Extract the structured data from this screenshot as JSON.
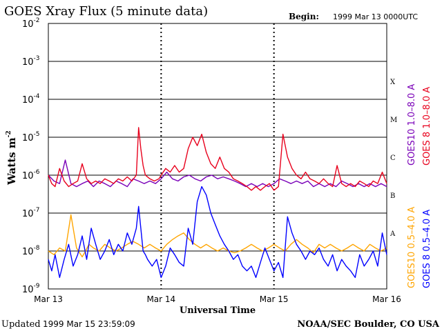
{
  "chart_data": {
    "type": "line",
    "title": "GOES Xray Flux (5 minute data)",
    "begin_label": "Begin:",
    "begin_value": "1999 Mar 13 0000UTC",
    "xlabel": "Universal Time",
    "ylabel": "Watts m",
    "ylabel_exponent": "-2",
    "yscale": "log",
    "ylim": [
      1e-09,
      0.01
    ],
    "xlim": [
      0,
      3
    ],
    "x_ticks": [
      {
        "value": 0,
        "label": "Mar 13"
      },
      {
        "value": 1,
        "label": "Mar 14"
      },
      {
        "value": 2,
        "label": "Mar 15"
      },
      {
        "value": 3,
        "label": "Mar 16"
      }
    ],
    "y_ticks": [
      {
        "exp": -2,
        "base": "10",
        "label": "-2"
      },
      {
        "exp": -3,
        "base": "10",
        "label": "-3"
      },
      {
        "exp": -4,
        "base": "10",
        "label": "-4"
      },
      {
        "exp": -5,
        "base": "10",
        "label": "-5"
      },
      {
        "exp": -6,
        "base": "10",
        "label": "-6"
      },
      {
        "exp": -7,
        "base": "10",
        "label": "-7"
      },
      {
        "exp": -8,
        "base": "10",
        "label": "-8"
      },
      {
        "exp": -9,
        "base": "10",
        "label": "-9"
      }
    ],
    "flare_classes": [
      {
        "label": "X",
        "value": 0.0003
      },
      {
        "label": "M",
        "value": 3e-05
      },
      {
        "label": "C",
        "value": 3e-06
      },
      {
        "label": "B",
        "value": 3e-07
      },
      {
        "label": "A",
        "value": 3e-08
      }
    ],
    "grid": true,
    "legend": [
      {
        "text": "GOES10 1.0–8.0 A",
        "color": "#7a00b8"
      },
      {
        "text": "GOES 8 1.0–8.0 A",
        "color": "#e8001c"
      },
      {
        "text": "GOES10 0.5–4.0 A",
        "color": "#ffa500"
      },
      {
        "text": "GOES 8 0.5–4.0 A",
        "color": "#0000ff"
      }
    ],
    "series": [
      {
        "name": "GOES10 0.5–4.0 A",
        "color": "#ffa500",
        "x": [
          0,
          0.05,
          0.1,
          0.15,
          0.2,
          0.25,
          0.3,
          0.33,
          0.36,
          0.4,
          0.45,
          0.5,
          0.55,
          0.6,
          0.65,
          0.7,
          0.75,
          0.8,
          0.85,
          0.9,
          0.95,
          1.0,
          1.05,
          1.1,
          1.15,
          1.2,
          1.25,
          1.3,
          1.35,
          1.4,
          1.45,
          1.5,
          1.55,
          1.6,
          1.65,
          1.7,
          1.75,
          1.8,
          1.85,
          1.9,
          1.95,
          2.0,
          2.05,
          2.1,
          2.15,
          2.2,
          2.25,
          2.3,
          2.35,
          2.4,
          2.45,
          2.5,
          2.55,
          2.6,
          2.65,
          2.7,
          2.75,
          2.8,
          2.85,
          2.9,
          2.95,
          3.0
        ],
        "y": [
          1e-08,
          8e-09,
          1.2e-08,
          1e-08,
          9e-08,
          1.2e-08,
          7e-09,
          1e-08,
          1.5e-08,
          1.2e-08,
          1e-08,
          1.5e-08,
          1.2e-08,
          1e-08,
          1.2e-08,
          1.5e-08,
          1.8e-08,
          1.5e-08,
          1.2e-08,
          1.5e-08,
          1.2e-08,
          1e-08,
          1.5e-08,
          2e-08,
          2.5e-08,
          3e-08,
          2e-08,
          1.5e-08,
          1.2e-08,
          1.5e-08,
          1.2e-08,
          1e-08,
          1.2e-08,
          1e-08,
          9e-09,
          1e-08,
          1.2e-08,
          1.5e-08,
          1.2e-08,
          1e-08,
          1.2e-08,
          1.5e-08,
          1.2e-08,
          1e-08,
          1.5e-08,
          2e-08,
          1.5e-08,
          1.2e-08,
          9e-09,
          1.5e-08,
          1.2e-08,
          1.5e-08,
          1.2e-08,
          1e-08,
          1.2e-08,
          1.5e-08,
          1.2e-08,
          1e-08,
          1.5e-08,
          1.2e-08,
          1e-08,
          1.2e-08
        ]
      },
      {
        "name": "GOES 8 0.5–4.0 A",
        "color": "#0000ff",
        "x": [
          0,
          0.03,
          0.06,
          0.1,
          0.14,
          0.18,
          0.22,
          0.26,
          0.3,
          0.34,
          0.38,
          0.42,
          0.46,
          0.5,
          0.54,
          0.58,
          0.62,
          0.66,
          0.7,
          0.74,
          0.78,
          0.8,
          0.82,
          0.84,
          0.86,
          0.88,
          0.92,
          0.96,
          1.0,
          1.04,
          1.08,
          1.12,
          1.16,
          1.2,
          1.24,
          1.28,
          1.32,
          1.36,
          1.4,
          1.44,
          1.48,
          1.52,
          1.56,
          1.6,
          1.64,
          1.68,
          1.72,
          1.76,
          1.8,
          1.84,
          1.88,
          1.92,
          1.96,
          2.0,
          2.04,
          2.08,
          2.12,
          2.16,
          2.2,
          2.24,
          2.28,
          2.32,
          2.36,
          2.4,
          2.44,
          2.48,
          2.52,
          2.56,
          2.6,
          2.64,
          2.68,
          2.72,
          2.76,
          2.8,
          2.84,
          2.88,
          2.92,
          2.96,
          3.0
        ],
        "y": [
          6e-09,
          3e-09,
          8e-09,
          2e-09,
          6e-09,
          1.5e-08,
          4e-09,
          8e-09,
          2.5e-08,
          6e-09,
          4e-08,
          1.5e-08,
          6e-09,
          1e-08,
          2e-08,
          8e-09,
          1.5e-08,
          1e-08,
          3e-08,
          1.5e-08,
          4e-08,
          1.5e-07,
          4e-08,
          1e-08,
          8e-09,
          6e-09,
          4e-09,
          6e-09,
          2e-09,
          4e-09,
          1.2e-08,
          8e-09,
          5e-09,
          4e-09,
          4e-08,
          1.5e-08,
          2e-07,
          5e-07,
          3e-07,
          1e-07,
          5e-08,
          2.5e-08,
          1.5e-08,
          1e-08,
          6e-09,
          8e-09,
          4e-09,
          3e-09,
          4e-09,
          2e-09,
          5e-09,
          1.2e-08,
          6e-09,
          3e-09,
          5e-09,
          2e-09,
          8e-08,
          3e-08,
          1.5e-08,
          1e-08,
          6e-09,
          1e-08,
          8e-09,
          1.2e-08,
          6e-09,
          4e-09,
          8e-09,
          3e-09,
          6e-09,
          4e-09,
          3e-09,
          2e-09,
          8e-09,
          4e-09,
          6e-09,
          1e-08,
          4e-09,
          3e-08,
          8e-09
        ]
      },
      {
        "name": "GOES10 1.0–8.0 A",
        "color": "#7a00b8",
        "x": [
          0,
          0.05,
          0.1,
          0.15,
          0.2,
          0.25,
          0.3,
          0.35,
          0.4,
          0.45,
          0.5,
          0.55,
          0.6,
          0.65,
          0.7,
          0.75,
          0.8,
          0.85,
          0.9,
          0.95,
          1.0,
          1.05,
          1.1,
          1.15,
          1.2,
          1.25,
          1.3,
          1.35,
          1.4,
          1.45,
          1.5,
          1.55,
          1.6,
          1.65,
          1.7,
          1.75,
          1.8,
          1.85,
          1.9,
          1.95,
          2.0,
          2.05,
          2.1,
          2.15,
          2.2,
          2.25,
          2.3,
          2.35,
          2.4,
          2.45,
          2.5,
          2.55,
          2.6,
          2.65,
          2.7,
          2.75,
          2.8,
          2.85,
          2.9,
          2.95,
          3.0
        ],
        "y": [
          1e-06,
          7e-07,
          6e-07,
          2.5e-06,
          6e-07,
          5e-07,
          6e-07,
          7e-07,
          5e-07,
          7e-07,
          6e-07,
          5e-07,
          7e-07,
          6e-07,
          5e-07,
          8e-07,
          7e-07,
          6e-07,
          7e-07,
          6e-07,
          8e-07,
          1.2e-06,
          8e-07,
          7e-07,
          9e-07,
          1e-06,
          8e-07,
          7e-07,
          9e-07,
          1e-06,
          8e-07,
          9e-07,
          8e-07,
          7e-07,
          6e-07,
          5e-07,
          6e-07,
          5e-07,
          6e-07,
          5e-07,
          6e-07,
          8e-07,
          7e-07,
          6e-07,
          7e-07,
          6e-07,
          7e-07,
          5e-07,
          6e-07,
          5e-07,
          6e-07,
          5e-07,
          7e-07,
          6e-07,
          5e-07,
          6e-07,
          5e-07,
          6e-07,
          5e-07,
          6e-07,
          5e-07
        ]
      },
      {
        "name": "GOES 8 1.0–8.0 A",
        "color": "#e8001c",
        "x": [
          0,
          0.03,
          0.06,
          0.1,
          0.14,
          0.18,
          0.22,
          0.26,
          0.3,
          0.34,
          0.38,
          0.42,
          0.46,
          0.5,
          0.54,
          0.58,
          0.62,
          0.66,
          0.7,
          0.74,
          0.78,
          0.8,
          0.82,
          0.84,
          0.86,
          0.9,
          0.94,
          0.98,
          1.0,
          1.04,
          1.08,
          1.12,
          1.16,
          1.2,
          1.24,
          1.28,
          1.32,
          1.36,
          1.4,
          1.44,
          1.48,
          1.52,
          1.56,
          1.6,
          1.64,
          1.68,
          1.72,
          1.76,
          1.8,
          1.84,
          1.88,
          1.92,
          1.96,
          2.0,
          2.04,
          2.08,
          2.12,
          2.16,
          2.2,
          2.24,
          2.28,
          2.32,
          2.36,
          2.4,
          2.44,
          2.48,
          2.52,
          2.56,
          2.6,
          2.64,
          2.68,
          2.72,
          2.76,
          2.8,
          2.84,
          2.88,
          2.92,
          2.96,
          3.0
        ],
        "y": [
          1e-06,
          6e-07,
          5e-07,
          1.5e-06,
          7e-07,
          5e-07,
          6e-07,
          7e-07,
          2e-06,
          8e-07,
          6e-07,
          7e-07,
          6e-07,
          8e-07,
          7e-07,
          6e-07,
          8e-07,
          7e-07,
          9e-07,
          7e-07,
          1e-06,
          1.8e-05,
          5e-06,
          1.8e-06,
          1e-06,
          8e-07,
          7e-07,
          8e-07,
          1e-06,
          1.5e-06,
          1.2e-06,
          1.8e-06,
          1.2e-06,
          1.5e-06,
          5e-06,
          1e-05,
          6e-06,
          1.2e-05,
          4e-06,
          2e-06,
          1.5e-06,
          3e-06,
          1.5e-06,
          1.2e-06,
          8e-07,
          7e-07,
          6e-07,
          5e-07,
          4e-07,
          5e-07,
          4e-07,
          5e-07,
          6e-07,
          4e-07,
          5e-07,
          1.2e-05,
          3e-06,
          1.5e-06,
          1e-06,
          8e-07,
          1.2e-06,
          8e-07,
          7e-07,
          6e-07,
          8e-07,
          6e-07,
          5e-07,
          1.8e-06,
          6e-07,
          5e-07,
          6e-07,
          5e-07,
          7e-07,
          6e-07,
          5e-07,
          7e-07,
          6e-07,
          1.2e-06,
          6e-07
        ]
      }
    ]
  },
  "footer": {
    "updated_label": "Updated",
    "updated_value": "1999 Mar 15 23:59:09",
    "credit": "NOAA/SEC Boulder, CO USA"
  }
}
